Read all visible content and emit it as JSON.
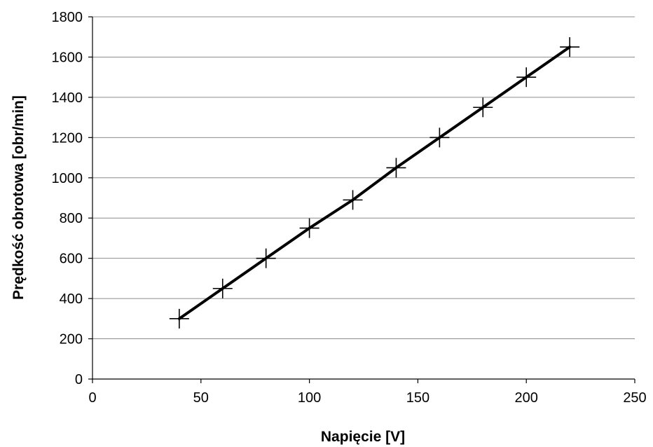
{
  "chart_data": {
    "type": "line",
    "title": "",
    "xlabel": "Napięcie [V]",
    "ylabel": "Prędkość obrotowa [obr/min]",
    "xlim": [
      0,
      250
    ],
    "ylim": [
      0,
      1800
    ],
    "xticks": [
      0,
      50,
      100,
      150,
      200,
      250
    ],
    "yticks": [
      0,
      200,
      400,
      600,
      800,
      1000,
      1200,
      1400,
      1600,
      1800
    ],
    "grid": "horizontal",
    "legend": "none",
    "series": [
      {
        "marker": "plus",
        "color": "#000000",
        "x": [
          40,
          60,
          80,
          100,
          120,
          140,
          160,
          180,
          200,
          220
        ],
        "y": [
          300,
          450,
          600,
          750,
          890,
          1050,
          1200,
          1350,
          1500,
          1650
        ]
      }
    ]
  }
}
